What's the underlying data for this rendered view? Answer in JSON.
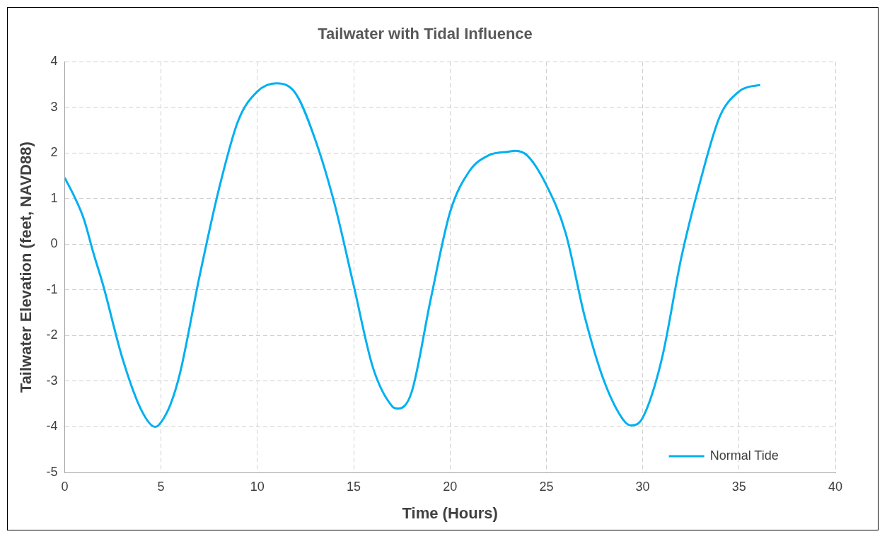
{
  "chart_data": {
    "type": "line",
    "title": "Tailwater with Tidal Influence",
    "xlabel": "Time (Hours)",
    "ylabel": "Tailwater Elevation (feet, NAVD88)",
    "xlim": [
      0,
      40
    ],
    "xticks": [
      0,
      5,
      10,
      15,
      20,
      25,
      30,
      35,
      40
    ],
    "ylim": [
      -5,
      4
    ],
    "yticks": [
      -5,
      -4,
      -3,
      -2,
      -1,
      0,
      1,
      2,
      3,
      4
    ],
    "grid": true,
    "legend": "bottom right",
    "marker": "none",
    "line_style": "solid",
    "series": [
      {
        "name": "Normal Tide",
        "color": "#00b0f0",
        "x": [
          0,
          0.5,
          1,
          1.5,
          2,
          3,
          4,
          4.7,
          5,
          5.5,
          6,
          7,
          8,
          9,
          10,
          11,
          12,
          13,
          14,
          15,
          16,
          17,
          17.3,
          18,
          19,
          20,
          21,
          22,
          23,
          23.4,
          24,
          25,
          26,
          27,
          28,
          29,
          29.4,
          30,
          31,
          32,
          33,
          34,
          35,
          35.5,
          36.1
        ],
        "values": [
          1.46,
          1.05,
          0.55,
          -0.2,
          -0.9,
          -2.5,
          -3.65,
          -4.0,
          -3.9,
          -3.5,
          -2.8,
          -0.7,
          1.2,
          2.7,
          3.35,
          3.53,
          3.3,
          2.3,
          0.9,
          -0.9,
          -2.7,
          -3.55,
          -3.6,
          -3.25,
          -1.2,
          0.7,
          1.6,
          1.95,
          2.03,
          2.05,
          1.95,
          1.3,
          0.25,
          -1.6,
          -3.0,
          -3.85,
          -3.97,
          -3.8,
          -2.5,
          -0.3,
          1.4,
          2.8,
          3.35,
          3.45,
          3.49
        ]
      }
    ]
  }
}
